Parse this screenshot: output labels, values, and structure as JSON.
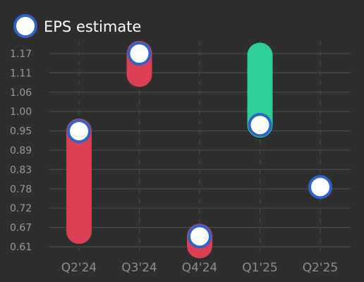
{
  "chart_data": {
    "type": "candlestick-eps",
    "legend": {
      "label": "EPS estimate",
      "placement": "top-left"
    },
    "categories": [
      "Q2'24",
      "Q3'24",
      "Q4'24",
      "Q1'25",
      "Q2'25"
    ],
    "estimates": [
      0.945,
      1.17,
      0.64,
      0.963,
      0.783
    ],
    "actuals": [
      0.655,
      1.11,
      0.613,
      1.165,
      null
    ],
    "y_ticks": [
      "1.17",
      "1.11",
      "1.06",
      "1.00",
      "0.95",
      "0.89",
      "0.83",
      "0.78",
      "0.72",
      "0.67",
      "0.61"
    ],
    "ylim": [
      0.61,
      1.17
    ],
    "grid": true,
    "colors": {
      "background": "#2e2e2e",
      "beat": "#2ecf96",
      "miss": "#dc3f54",
      "marker_fill": "#ffffff",
      "marker_stroke": "#2f63c8",
      "grid": "#4a4a4a",
      "tick_text": "#9a9a9a"
    }
  }
}
